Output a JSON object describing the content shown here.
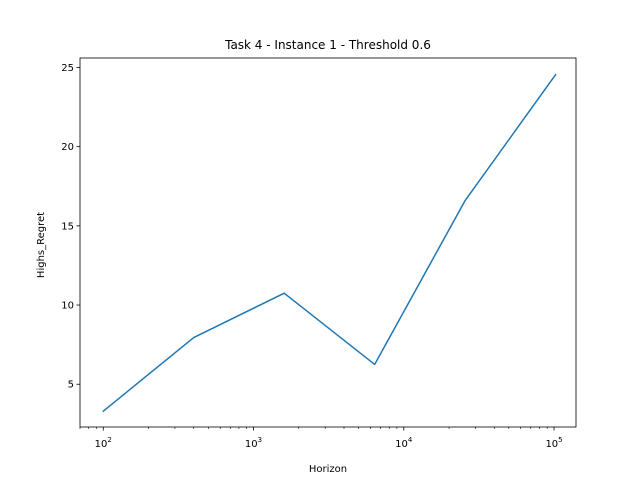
{
  "chart_data": {
    "type": "line",
    "title": "Task 4 - Instance 1 - Threshold 0.6",
    "xlabel": "Horizon",
    "ylabel": "Highs_Regret",
    "xscale": "log",
    "xlim": [
      70,
      140000
    ],
    "ylim": [
      2.3,
      25.6
    ],
    "grid": false,
    "legend": "none",
    "x_ticks": [
      {
        "value": 100,
        "base": "10",
        "exp": "2"
      },
      {
        "value": 1000,
        "base": "10",
        "exp": "3"
      },
      {
        "value": 10000,
        "base": "10",
        "exp": "4"
      },
      {
        "value": 100000,
        "base": "10",
        "exp": "5"
      }
    ],
    "y_ticks": [
      {
        "value": 5,
        "label": "5"
      },
      {
        "value": 10,
        "label": "10"
      },
      {
        "value": 15,
        "label": "15"
      },
      {
        "value": 20,
        "label": "20"
      },
      {
        "value": 25,
        "label": "25"
      }
    ],
    "series": [
      {
        "color": "#1f77b4",
        "x": [
          100,
          400,
          1600,
          6400,
          25600,
          102400
        ],
        "y": [
          3.3,
          7.95,
          10.75,
          6.25,
          16.6,
          24.55
        ]
      }
    ]
  }
}
